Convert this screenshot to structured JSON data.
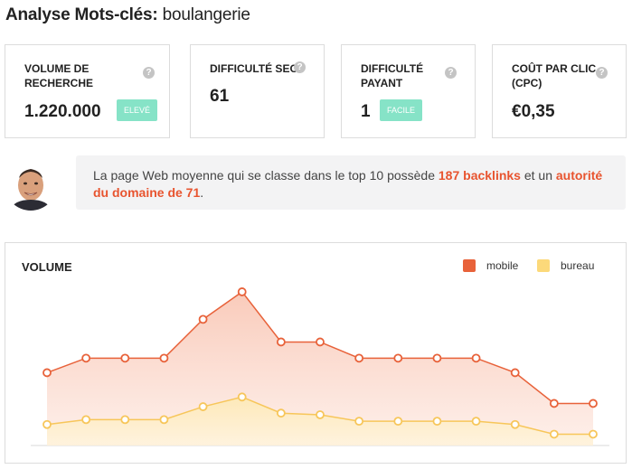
{
  "header": {
    "title_bold": "Analyse Mots-clés:",
    "title_keyword": "boulangerie"
  },
  "metrics": [
    {
      "label_line1": "VOLUME DE",
      "label_line2": "RECHERCHE",
      "value": "1.220.000",
      "badge": "ELEVÉ"
    },
    {
      "label_line1": "DIFFICULTÉ SEO",
      "label_line2": "",
      "value": "61",
      "badge": ""
    },
    {
      "label_line1": "DIFFICULTÉ",
      "label_line2": "PAYANT",
      "value": "1",
      "badge": "FACILE"
    },
    {
      "label_line1": "COÛT PAR CLIC",
      "label_line2": "(CPC)",
      "value": "€0,35",
      "badge": ""
    }
  ],
  "help_glyph": "?",
  "tip": {
    "part1": "La page Web moyenne qui se classe dans le top 10 possède ",
    "highlight1": "187 backlinks",
    "part2": " et un ",
    "highlight2": "autorité du domaine de 71",
    "part3": "."
  },
  "colors": {
    "mobile": "#e8623a",
    "bureau": "#fcd97a",
    "badge": "#86e3c7",
    "highlight": "#e8542f"
  },
  "icons": {
    "help": "question-mark-circle-icon",
    "avatar": "person-portrait"
  },
  "chart_data": {
    "type": "area",
    "title": "VOLUME",
    "legend_position": "top-right",
    "grid": false,
    "ylim": [
      0,
      1
    ],
    "x": [
      1,
      2,
      3,
      4,
      5,
      6,
      7,
      8,
      9,
      10,
      11,
      12,
      13,
      14,
      15
    ],
    "series": [
      {
        "name": "mobile",
        "values": [
          0.45,
          0.54,
          0.54,
          0.54,
          0.78,
          0.95,
          0.64,
          0.64,
          0.54,
          0.54,
          0.54,
          0.54,
          0.45,
          0.26,
          0.26
        ]
      },
      {
        "name": "bureau",
        "values": [
          0.13,
          0.16,
          0.16,
          0.16,
          0.24,
          0.3,
          0.2,
          0.19,
          0.15,
          0.15,
          0.15,
          0.15,
          0.13,
          0.07,
          0.07
        ]
      }
    ]
  }
}
